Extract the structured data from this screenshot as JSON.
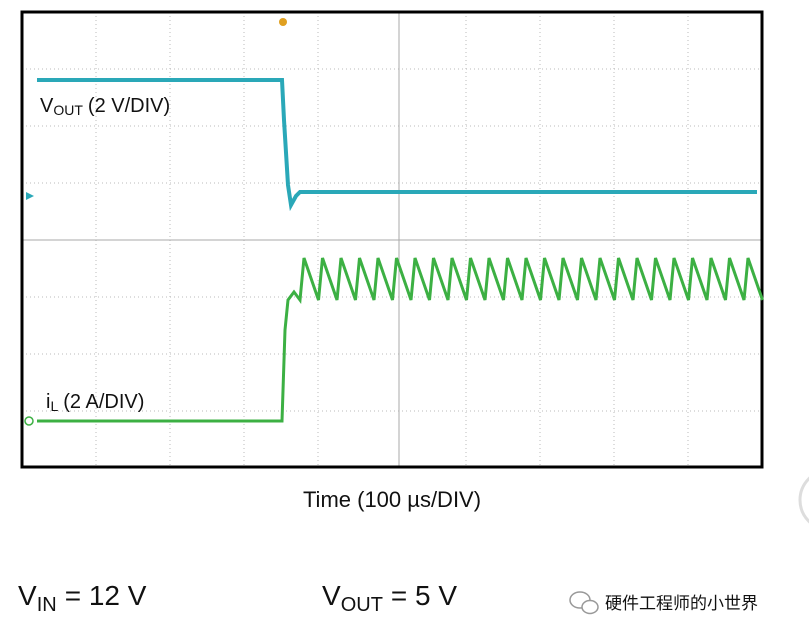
{
  "traces": [
    {
      "symbol": "V",
      "subscript": "OUT",
      "scale": "(2 V/DIV)"
    },
    {
      "symbol": "i",
      "subscript": "L",
      "scale": "(2 A/DIV)"
    }
  ],
  "x_axis_label": "Time (100 µs/DIV)",
  "conditions": [
    {
      "symbol": "V",
      "subscript": "IN",
      "value": "= 12 V"
    },
    {
      "symbol": "V",
      "subscript": "OUT",
      "value": "= 5 V"
    }
  ],
  "watermark": "硬件工程师的小世界"
}
